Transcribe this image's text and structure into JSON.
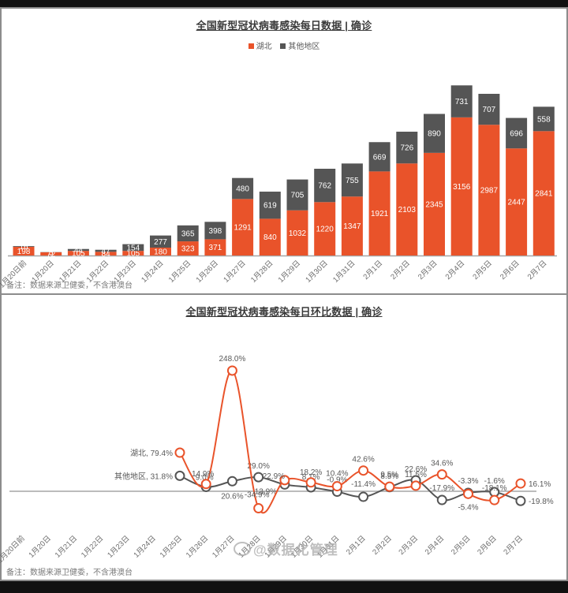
{
  "watermark": "@数据化管理",
  "colors": {
    "hubei": "#E9532A",
    "others": "#555555",
    "axis": "#a6a6a6",
    "label": "#595959"
  },
  "chart_data": [
    {
      "type": "bar",
      "stacked": true,
      "title": "全国新型冠状病毒感染每日数据 | 确诊",
      "legend_position": "top-center",
      "categories": [
        "1月20日前",
        "1月20日",
        "1月21日",
        "1月22日",
        "1月23日",
        "1月24日",
        "1月25日",
        "1月26日",
        "1月27日",
        "1月28日",
        "1月29日",
        "1月30日",
        "1月31日",
        "2月1日",
        "2月2日",
        "2月3日",
        "2月4日",
        "2月5日",
        "2月6日",
        "2月7日"
      ],
      "series": [
        {
          "name": "湖北",
          "color": "#E9532A",
          "values": [
            198,
            72,
            105,
            84,
            105,
            180,
            323,
            371,
            1291,
            840,
            1032,
            1220,
            1347,
            1921,
            2103,
            2345,
            3156,
            2987,
            2447,
            2841
          ]
        },
        {
          "name": "其他地区",
          "color": "#555555",
          "values": [
            16,
            5,
            44,
            47,
            154,
            277,
            365,
            398,
            480,
            619,
            705,
            762,
            755,
            669,
            726,
            890,
            731,
            707,
            696,
            558
          ]
        }
      ],
      "ylim": [
        0,
        4000
      ],
      "grid": false,
      "note": "备注：数据来源卫健委，不含港澳台"
    },
    {
      "type": "line",
      "smooth": true,
      "title": "全国新型冠状病毒感染每日环比数据 | 确诊",
      "categories": [
        "1月20日前",
        "1月20日",
        "1月21日",
        "1月22日",
        "1月23日",
        "1月24日",
        "1月25日",
        "1月26日",
        "1月27日",
        "1月28日",
        "1月29日",
        "1月30日",
        "1月31日",
        "2月1日",
        "2月2日",
        "2月3日",
        "2月4日",
        "2月5日",
        "2月6日",
        "2月7日"
      ],
      "series": [
        {
          "name": "湖北",
          "color": "#E9532A",
          "values": [
            null,
            null,
            null,
            null,
            null,
            null,
            79.4,
            14.9,
            248.0,
            -34.9,
            22.9,
            18.2,
            10.4,
            42.6,
            9.5,
            11.5,
            34.6,
            -5.4,
            -18.1,
            16.1
          ],
          "labels": [
            null,
            null,
            null,
            null,
            null,
            null,
            "湖北, 79.4%",
            "14.9%",
            "248.0%",
            "-34.9%",
            "22.9%",
            "18.2%",
            "10.4%",
            "42.6%",
            "9.5%",
            "11.5%",
            "34.6%",
            "-5.4%",
            "-18.1%",
            "16.1%"
          ]
        },
        {
          "name": "其他地区",
          "color": "#555555",
          "values": [
            null,
            null,
            null,
            null,
            null,
            null,
            31.8,
            9.0,
            20.6,
            29.0,
            13.9,
            8.1,
            -0.9,
            -11.4,
            8.5,
            22.6,
            -17.9,
            -3.3,
            -1.6,
            -19.8
          ],
          "labels": [
            null,
            null,
            null,
            null,
            null,
            null,
            "其他地区, 31.8%",
            "9.0%",
            "20.6%",
            "29.0%",
            "13.9%",
            "8.1%",
            "-0.9%",
            "-11.4%",
            "8.5%",
            "22.6%",
            "-17.9%",
            "-3.3%",
            "-1.6%",
            "-19.8%"
          ]
        }
      ],
      "unit": "%",
      "ylim": [
        -40,
        260
      ],
      "grid": false,
      "note": "备注：数据来源卫健委，不含港澳台"
    }
  ]
}
